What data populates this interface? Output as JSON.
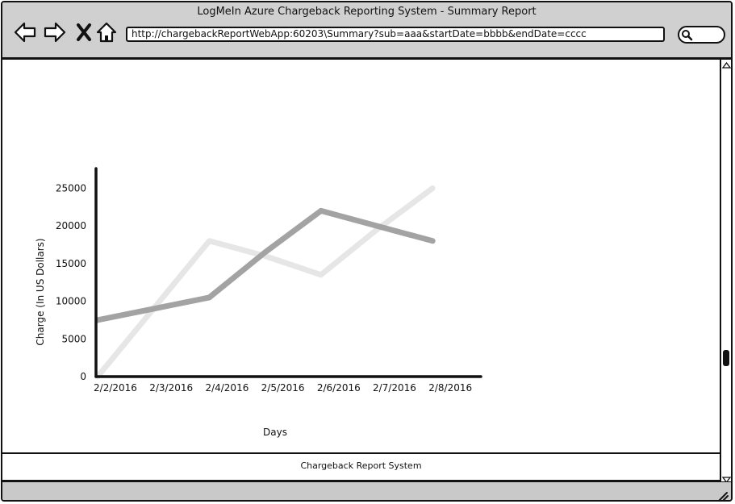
{
  "window": {
    "title": "LogMeIn Azure Chargeback Reporting System - Summary Report",
    "url": "http://chargebackReportWebApp:60203\\Summary?sub=aaa&startDate=bbbb&endDate=cccc"
  },
  "toolbar": {
    "back_icon": "back-arrow-icon",
    "forward_icon": "forward-arrow-icon",
    "stop_icon": "close-icon",
    "home_icon": "home-icon",
    "search_icon": "search-icon"
  },
  "footer": {
    "text": "Chargeback Report System"
  },
  "colors": {
    "chrome": "#d0d0d0",
    "series_dark": "#a3a3a3",
    "series_light": "#e6e6e6",
    "axis": "#111111"
  },
  "chart_data": {
    "type": "line",
    "categories": [
      "2/2/2016",
      "2/3/2016",
      "2/4/2016",
      "2/5/2016",
      "2/6/2016",
      "2/7/2016",
      "2/8/2016"
    ],
    "series": [
      {
        "values": [
          7500,
          9000,
          10500,
          16500,
          22000,
          20000,
          18000
        ]
      },
      {
        "values": [
          0,
          9000,
          18000,
          16000,
          13500,
          19500,
          25000
        ]
      }
    ],
    "yticks": [
      0,
      5000,
      10000,
      15000,
      20000,
      25000
    ],
    "ylim": [
      0,
      27500
    ],
    "xlabel": "Days",
    "ylabel": "Charge (In US Dollars)",
    "grid": false
  }
}
